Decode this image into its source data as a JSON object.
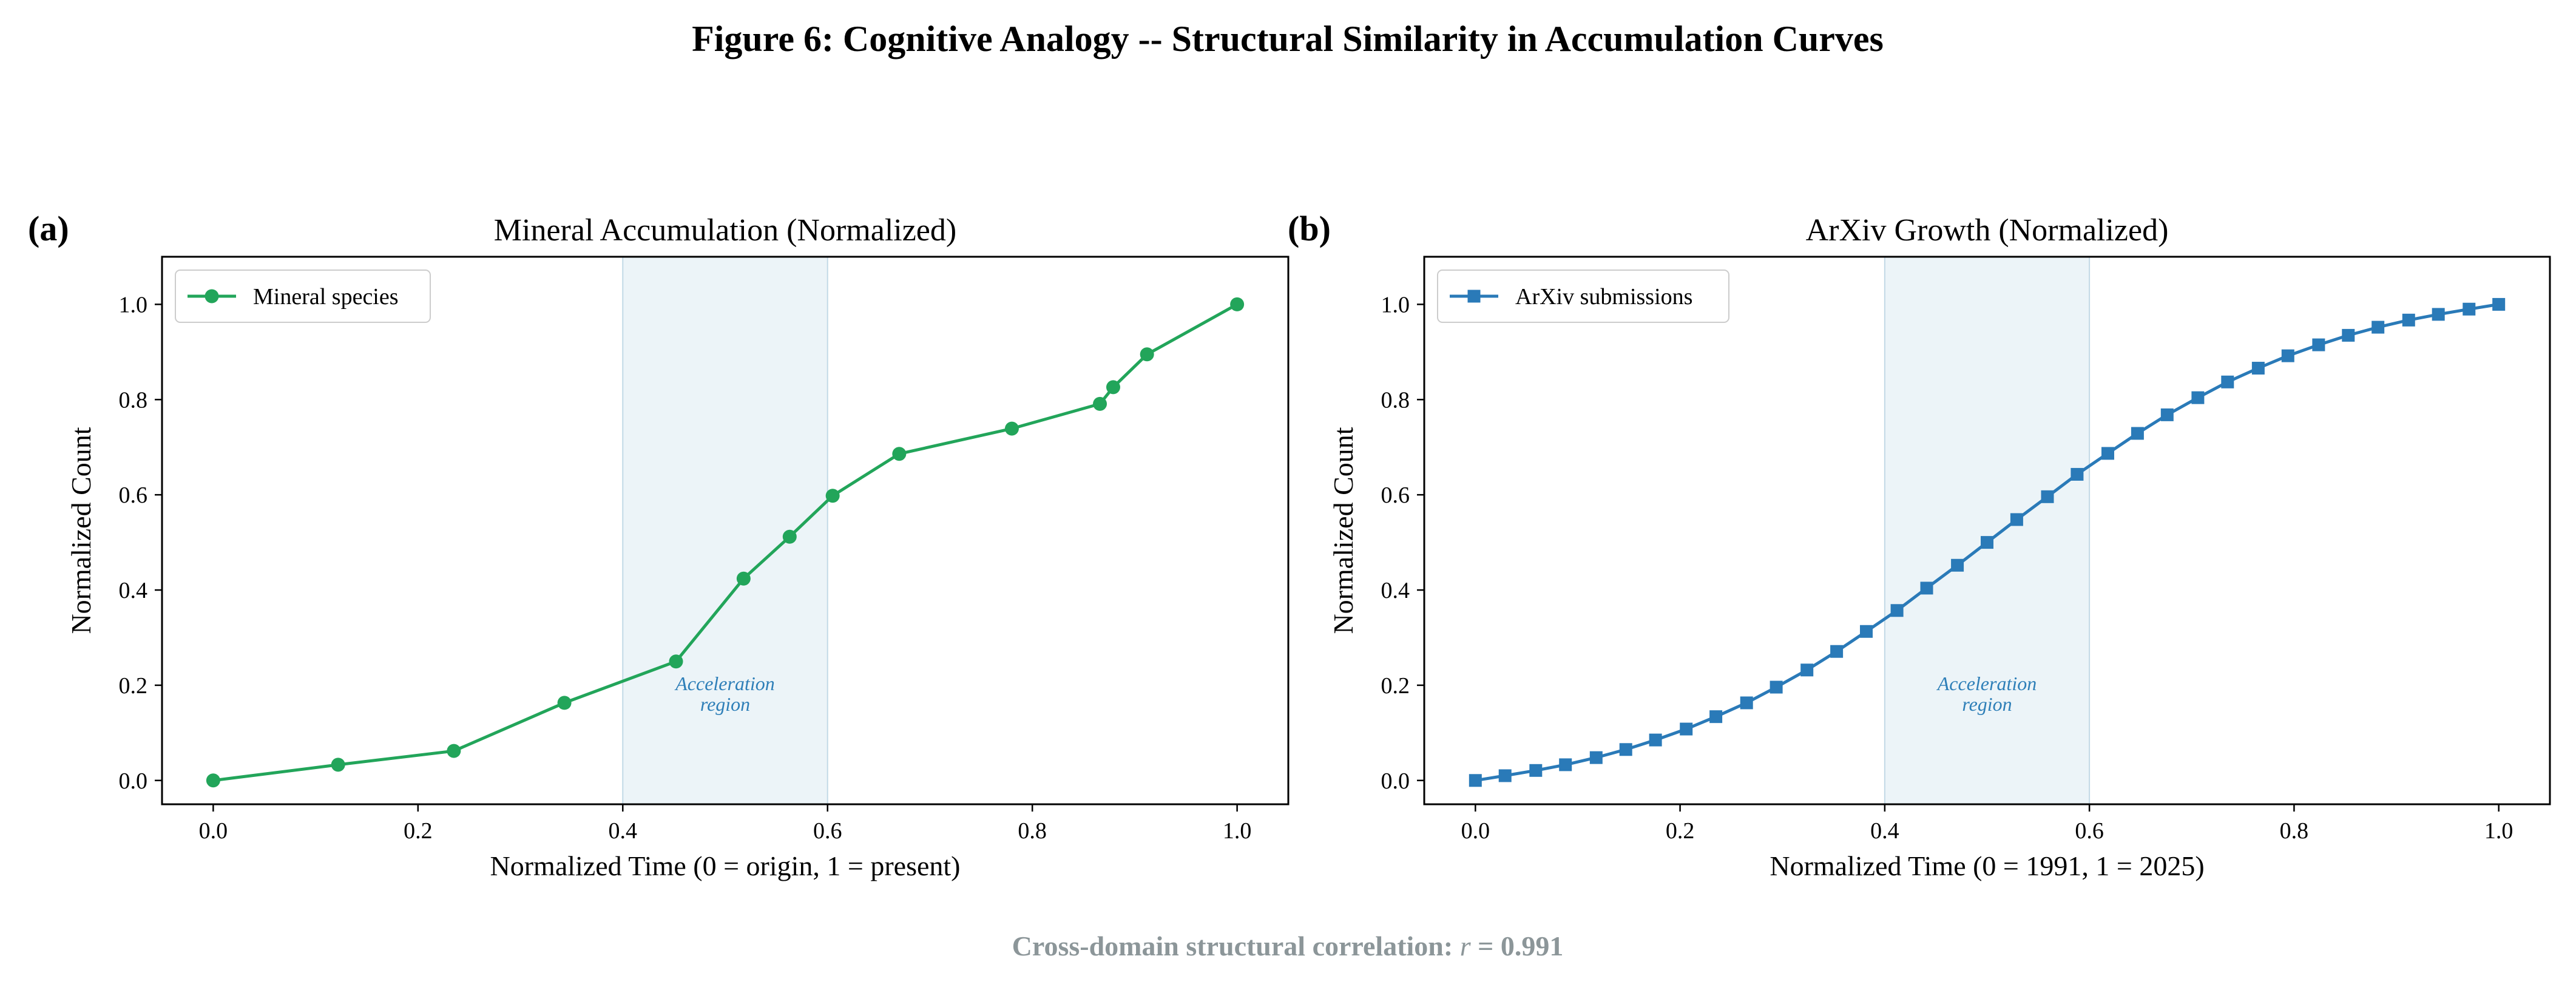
{
  "figure": {
    "title": "Figure 6: Cognitive Analogy -- Structural Similarity in Accumulation Curves",
    "footer_prefix": "Cross-domain structural correlation: ",
    "footer_symbol": "r",
    "footer_value": " = 0.991"
  },
  "colors": {
    "mineral": "#22a55a",
    "arxiv": "#2a7ab8",
    "shade": "#d4e6f0",
    "annotation": "#2e7fb8",
    "footer": "#8c9699"
  },
  "chart_data": [
    {
      "type": "line",
      "panel_label": "(a)",
      "title": "Mineral Accumulation (Normalized)",
      "xlabel": "Normalized Time (0 = origin, 1 = present)",
      "ylabel": "Normalized Count",
      "xlim": [
        -0.05,
        1.05
      ],
      "ylim": [
        -0.05,
        1.1
      ],
      "xticks": [
        "0.0",
        "0.2",
        "0.4",
        "0.6",
        "0.8",
        "1.0"
      ],
      "yticks": [
        "0.0",
        "0.2",
        "0.4",
        "0.6",
        "0.8",
        "1.0"
      ],
      "grid": false,
      "legend_position": "top-left",
      "shaded_region": {
        "x": [
          0.4,
          0.6
        ],
        "label": "Acceleration region",
        "label_lines": [
          "Acceleration",
          "region"
        ],
        "label_pos": [
          0.5,
          0.19
        ]
      },
      "series": [
        {
          "name": "Mineral species",
          "marker": "circle",
          "color_key": "mineral",
          "x": [
            0.0,
            0.122,
            0.235,
            0.343,
            0.452,
            0.518,
            0.563,
            0.605,
            0.67,
            0.78,
            0.866,
            0.879,
            0.912,
            1.0
          ],
          "y": [
            0.0,
            0.033,
            0.062,
            0.163,
            0.25,
            0.424,
            0.512,
            0.598,
            0.686,
            0.739,
            0.791,
            0.826,
            0.895,
            1.0
          ]
        }
      ]
    },
    {
      "type": "line",
      "panel_label": "(b)",
      "title": "ArXiv Growth (Normalized)",
      "xlabel": "Normalized Time (0 = 1991, 1 = 2025)",
      "ylabel": "Normalized Count",
      "xlim": [
        -0.05,
        1.05
      ],
      "ylim": [
        -0.05,
        1.1
      ],
      "xticks": [
        "0.0",
        "0.2",
        "0.4",
        "0.6",
        "0.8",
        "1.0"
      ],
      "yticks": [
        "0.0",
        "0.2",
        "0.4",
        "0.6",
        "0.8",
        "1.0"
      ],
      "grid": false,
      "legend_position": "top-left",
      "shaded_region": {
        "x": [
          0.4,
          0.6
        ],
        "label": "Acceleration region",
        "label_lines": [
          "Acceleration",
          "region"
        ],
        "label_pos": [
          0.5,
          0.19
        ]
      },
      "series": [
        {
          "name": "ArXiv submissions",
          "marker": "square",
          "color_key": "arxiv",
          "x": [
            0.0,
            0.029,
            0.059,
            0.088,
            0.118,
            0.147,
            0.176,
            0.206,
            0.235,
            0.265,
            0.294,
            0.324,
            0.353,
            0.382,
            0.412,
            0.441,
            0.471,
            0.5,
            0.529,
            0.559,
            0.588,
            0.618,
            0.647,
            0.676,
            0.706,
            0.735,
            0.765,
            0.794,
            0.824,
            0.853,
            0.882,
            0.912,
            0.941,
            0.971,
            1.0
          ],
          "y": [
            0.0,
            0.01,
            0.021,
            0.033,
            0.048,
            0.065,
            0.085,
            0.108,
            0.134,
            0.163,
            0.196,
            0.232,
            0.271,
            0.313,
            0.357,
            0.404,
            0.452,
            0.5,
            0.548,
            0.596,
            0.643,
            0.687,
            0.729,
            0.768,
            0.804,
            0.837,
            0.866,
            0.892,
            0.915,
            0.935,
            0.952,
            0.967,
            0.979,
            0.99,
            1.0
          ]
        }
      ]
    }
  ]
}
